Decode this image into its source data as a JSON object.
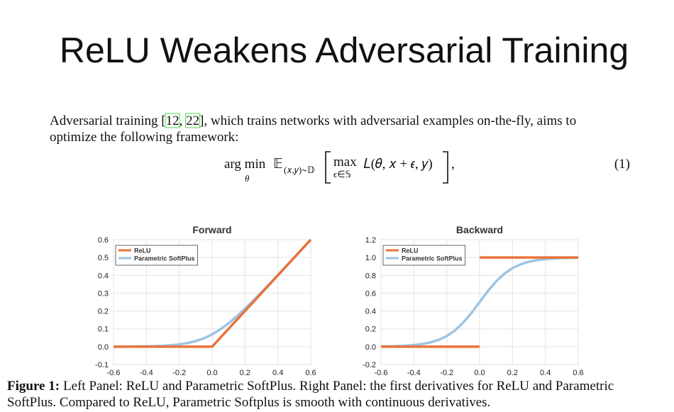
{
  "slide_title": "ReLU Weakens Adversarial Training",
  "paragraph": {
    "line1_start": "Adversarial training [",
    "citations": [
      "12",
      "22"
    ],
    "citation_separator": ", ",
    "line1_end": "], which trains networks with adversarial examples on-the-fly, aims to",
    "line2": "optimize the following framework:"
  },
  "equation": {
    "operator": "arg min",
    "operator_sub": "θ",
    "expectation": "𝔼",
    "expectation_sub": "(𝑥,𝑦)∼𝔻",
    "inner_operator": "max",
    "inner_sub": "ϵ∈𝕊",
    "body": "𝐿(𝜃, 𝑥 + 𝜖, 𝑦)",
    "comma": ",",
    "number": "(1)"
  },
  "chart_data": [
    {
      "type": "line",
      "title": "Forward",
      "xlim": [
        -0.6,
        0.6
      ],
      "ylim": [
        -0.1,
        0.6
      ],
      "xticks": [
        -0.6,
        -0.4,
        -0.2,
        {
          "value": 0,
          "label": "0.0"
        },
        0.2,
        0.4,
        0.6
      ],
      "yticks": [
        -0.1,
        {
          "value": 0,
          "label": "0.0"
        },
        0.1,
        0.2,
        0.3,
        0.4,
        0.5,
        0.6
      ],
      "grid": true,
      "legend": "upper left",
      "series": [
        {
          "name": "ReLU",
          "color": "#e8743b",
          "x": [
            -0.6,
            0,
            0.6
          ],
          "values": [
            0,
            0,
            0.6
          ]
        },
        {
          "name": "Parametric SoftPlus",
          "color": "#9cc5e3",
          "x": [
            -0.6,
            -0.55,
            -0.5,
            -0.45,
            -0.4,
            -0.35,
            -0.3,
            -0.25,
            -0.2,
            -0.15,
            -0.1,
            -0.05,
            0,
            0.05,
            0.1,
            0.15,
            0.2,
            0.25,
            0.3,
            0.35,
            0.4,
            0.45,
            0.5,
            0.55,
            0.6
          ],
          "values": [
            0,
            0,
            0.001,
            0.001,
            0.002,
            0.003,
            0.005,
            0.008,
            0.013,
            0.02,
            0.031,
            0.047,
            0.069,
            0.097,
            0.131,
            0.17,
            0.213,
            0.258,
            0.305,
            0.353,
            0.402,
            0.451,
            0.501,
            0.55,
            0.6
          ]
        }
      ]
    },
    {
      "type": "line",
      "title": "Backward",
      "xlim": [
        -0.6,
        0.6
      ],
      "ylim": [
        -0.2,
        1.2
      ],
      "xticks": [
        -0.6,
        -0.4,
        -0.2,
        {
          "value": 0,
          "label": "0.0"
        },
        0.2,
        0.4,
        0.6
      ],
      "yticks": [
        -0.2,
        {
          "value": 0,
          "label": "0.0"
        },
        0.2,
        0.4,
        0.6,
        0.8,
        {
          "value": 1,
          "label": "1.0"
        },
        1.2
      ],
      "grid": true,
      "legend": "upper left",
      "series": [
        {
          "name": "ReLU",
          "color": "#e8743b",
          "x": [
            -0.6,
            0,
            0,
            0,
            0.6
          ],
          "values": [
            0,
            0,
            null,
            1,
            1
          ]
        },
        {
          "name": "Parametric SoftPlus",
          "color": "#9cc5e3",
          "x": [
            -0.6,
            -0.55,
            -0.5,
            -0.45,
            -0.4,
            -0.35,
            -0.3,
            -0.25,
            -0.2,
            -0.15,
            -0.1,
            -0.05,
            0,
            0.05,
            0.1,
            0.15,
            0.2,
            0.25,
            0.3,
            0.35,
            0.4,
            0.45,
            0.5,
            0.55,
            0.6
          ],
          "values": [
            0.003,
            0.004,
            0.007,
            0.011,
            0.018,
            0.029,
            0.047,
            0.076,
            0.119,
            0.182,
            0.269,
            0.378,
            0.5,
            0.622,
            0.731,
            0.818,
            0.881,
            0.924,
            0.953,
            0.971,
            0.982,
            0.989,
            0.993,
            0.996,
            0.998
          ]
        }
      ]
    }
  ],
  "caption": {
    "label": "Figure 1:",
    "line1": "Left Panel: ReLU and Parametric SoftPlus. Right Panel: the first derivatives for ReLU and Parametric",
    "line2": "SoftPlus. Compared to ReLU, Parametric Softplus is smooth with continuous derivatives."
  }
}
